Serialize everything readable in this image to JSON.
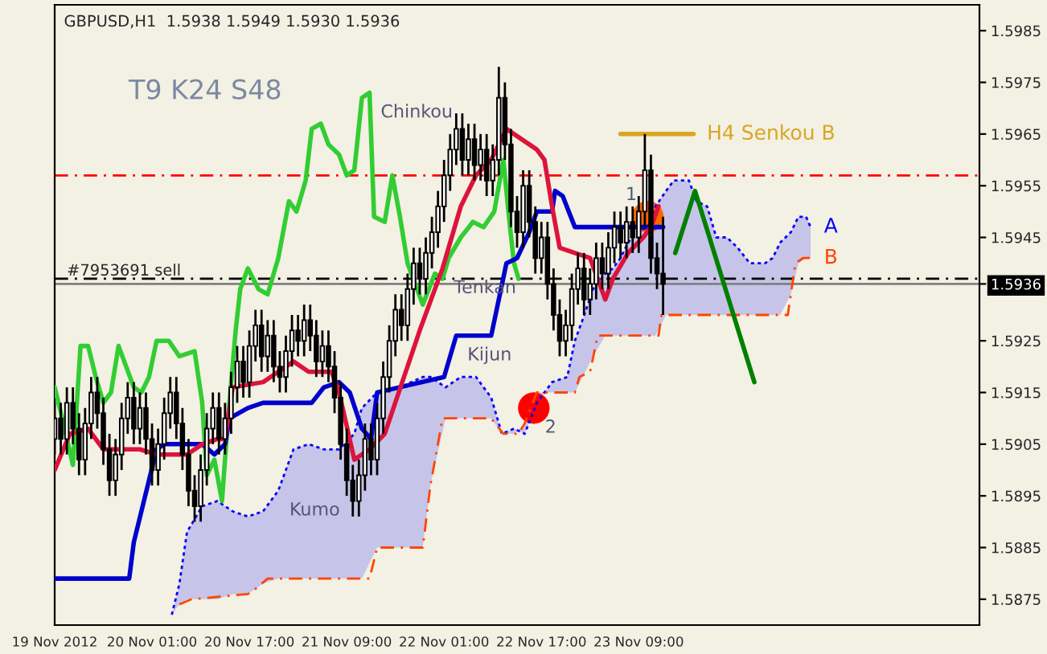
{
  "chart_data": {
    "type": "candlestick",
    "title": "GBPUSD,H1  1.5938 1.5949 1.5930 1.5936",
    "x": [
      "2012-11-19T09:00",
      "2012-11-19T10:00",
      "2012-11-19T11:00",
      "2012-11-19T12:00",
      "2012-11-19T13:00",
      "2012-11-19T14:00",
      "2012-11-19T15:00",
      "2012-11-19T16:00",
      "2012-11-19T17:00",
      "2012-11-19T18:00",
      "2012-11-19T19:00",
      "2012-11-19T20:00",
      "2012-11-19T21:00",
      "2012-11-19T22:00",
      "2012-11-19T23:00",
      "2012-11-20T00:00",
      "2012-11-20T01:00",
      "2012-11-20T02:00",
      "2012-11-20T03:00",
      "2012-11-20T04:00",
      "2012-11-20T05:00",
      "2012-11-20T06:00",
      "2012-11-20T07:00",
      "2012-11-20T08:00",
      "2012-11-20T09:00",
      "2012-11-20T10:00",
      "2012-11-20T11:00",
      "2012-11-20T12:00",
      "2012-11-20T13:00",
      "2012-11-20T14:00",
      "2012-11-20T15:00",
      "2012-11-20T16:00",
      "2012-11-20T17:00",
      "2012-11-20T18:00",
      "2012-11-20T19:00",
      "2012-11-20T20:00",
      "2012-11-20T21:00",
      "2012-11-20T22:00",
      "2012-11-20T23:00",
      "2012-11-21T00:00",
      "2012-11-21T01:00",
      "2012-11-21T02:00",
      "2012-11-21T03:00",
      "2012-11-21T04:00",
      "2012-11-21T05:00",
      "2012-11-21T06:00",
      "2012-11-21T07:00",
      "2012-11-21T08:00",
      "2012-11-21T09:00",
      "2012-11-21T10:00",
      "2012-11-21T11:00",
      "2012-11-21T12:00",
      "2012-11-21T13:00",
      "2012-11-21T14:00",
      "2012-11-21T15:00",
      "2012-11-21T16:00",
      "2012-11-21T17:00",
      "2012-11-21T18:00",
      "2012-11-21T19:00",
      "2012-11-21T20:00",
      "2012-11-21T21:00",
      "2012-11-21T22:00",
      "2012-11-21T23:00",
      "2012-11-22T00:00",
      "2012-11-22T01:00",
      "2012-11-22T02:00",
      "2012-11-22T03:00",
      "2012-11-22T04:00",
      "2012-11-22T05:00",
      "2012-11-22T06:00",
      "2012-11-22T07:00",
      "2012-11-22T08:00",
      "2012-11-22T09:00",
      "2012-11-22T10:00",
      "2012-11-22T11:00",
      "2012-11-22T12:00",
      "2012-11-22T13:00",
      "2012-11-22T14:00",
      "2012-11-22T15:00",
      "2012-11-22T16:00",
      "2012-11-22T17:00",
      "2012-11-22T18:00",
      "2012-11-22T19:00",
      "2012-11-22T20:00",
      "2012-11-22T21:00",
      "2012-11-22T22:00",
      "2012-11-22T23:00",
      "2012-11-23T00:00",
      "2012-11-23T01:00",
      "2012-11-23T02:00",
      "2012-11-23T03:00",
      "2012-11-23T04:00",
      "2012-11-23T05:00",
      "2012-11-23T06:00",
      "2012-11-23T07:00",
      "2012-11-23T08:00",
      "2012-11-23T09:00",
      "2012-11-23T10:00",
      "2012-11-23T11:00",
      "2012-11-23T12:00",
      "2012-11-23T13:00"
    ],
    "ohlc": [
      [
        1.5906,
        1.5913,
        1.5903,
        1.591
      ],
      [
        1.591,
        1.5913,
        1.5903,
        1.5906
      ],
      [
        1.5906,
        1.5916,
        1.5903,
        1.5913
      ],
      [
        1.5913,
        1.5916,
        1.5905,
        1.5908
      ],
      [
        1.5908,
        1.5911,
        1.5899,
        1.5902
      ],
      [
        1.5902,
        1.5912,
        1.5899,
        1.5909
      ],
      [
        1.5909,
        1.5918,
        1.5906,
        1.5915
      ],
      [
        1.5915,
        1.5918,
        1.5908,
        1.5911
      ],
      [
        1.5911,
        1.5914,
        1.5901,
        1.5904
      ],
      [
        1.5904,
        1.5907,
        1.5895,
        1.5898
      ],
      [
        1.5898,
        1.5906,
        1.5895,
        1.5903
      ],
      [
        1.5903,
        1.5913,
        1.59,
        1.591
      ],
      [
        1.591,
        1.5917,
        1.5907,
        1.5914
      ],
      [
        1.5914,
        1.5917,
        1.5905,
        1.5908
      ],
      [
        1.5908,
        1.5915,
        1.5905,
        1.5912
      ],
      [
        1.5912,
        1.5915,
        1.5903,
        1.5906
      ],
      [
        1.5906,
        1.5909,
        1.5897,
        1.59
      ],
      [
        1.59,
        1.5908,
        1.5897,
        1.5905
      ],
      [
        1.5905,
        1.5914,
        1.5902,
        1.5911
      ],
      [
        1.5911,
        1.5918,
        1.5908,
        1.5915
      ],
      [
        1.5915,
        1.5918,
        1.5906,
        1.5909
      ],
      [
        1.5909,
        1.5912,
        1.59,
        1.5903
      ],
      [
        1.5903,
        1.5906,
        1.5893,
        1.5896
      ],
      [
        1.5896,
        1.5899,
        1.589,
        1.5893
      ],
      [
        1.5893,
        1.5903,
        1.589,
        1.59
      ],
      [
        1.59,
        1.5911,
        1.5897,
        1.5908
      ],
      [
        1.5908,
        1.5915,
        1.5905,
        1.5912
      ],
      [
        1.5912,
        1.5915,
        1.5903,
        1.5906
      ],
      [
        1.5906,
        1.5913,
        1.5903,
        1.591
      ],
      [
        1.591,
        1.5919,
        1.5907,
        1.5916
      ],
      [
        1.5916,
        1.5924,
        1.5913,
        1.5921
      ],
      [
        1.5921,
        1.5924,
        1.5914,
        1.5917
      ],
      [
        1.5917,
        1.5927,
        1.5914,
        1.5924
      ],
      [
        1.5924,
        1.5931,
        1.5921,
        1.5928
      ],
      [
        1.5928,
        1.5931,
        1.5919,
        1.5922
      ],
      [
        1.5922,
        1.5929,
        1.5919,
        1.5926
      ],
      [
        1.5926,
        1.5929,
        1.5917,
        1.592
      ],
      [
        1.592,
        1.5923,
        1.5915,
        1.5918
      ],
      [
        1.5918,
        1.5926,
        1.5915,
        1.5923
      ],
      [
        1.5923,
        1.593,
        1.592,
        1.5927
      ],
      [
        1.5927,
        1.593,
        1.5922,
        1.5925
      ],
      [
        1.5925,
        1.5932,
        1.5922,
        1.5929
      ],
      [
        1.5929,
        1.5932,
        1.5923,
        1.5926
      ],
      [
        1.5926,
        1.5929,
        1.5918,
        1.5921
      ],
      [
        1.5921,
        1.5927,
        1.5918,
        1.5924
      ],
      [
        1.5924,
        1.5927,
        1.5917,
        1.592
      ],
      [
        1.592,
        1.5923,
        1.5911,
        1.5914
      ],
      [
        1.5914,
        1.5917,
        1.5902,
        1.5905
      ],
      [
        1.5905,
        1.5908,
        1.5895,
        1.5898
      ],
      [
        1.5898,
        1.5901,
        1.5891,
        1.5894
      ],
      [
        1.5894,
        1.5902,
        1.5891,
        1.5899
      ],
      [
        1.5899,
        1.5909,
        1.5896,
        1.5906
      ],
      [
        1.5906,
        1.5909,
        1.5899,
        1.5902
      ],
      [
        1.5902,
        1.5913,
        1.5899,
        1.591
      ],
      [
        1.591,
        1.5921,
        1.5907,
        1.5918
      ],
      [
        1.5918,
        1.5928,
        1.5915,
        1.5925
      ],
      [
        1.5925,
        1.5934,
        1.5922,
        1.5931
      ],
      [
        1.5931,
        1.5934,
        1.5925,
        1.5928
      ],
      [
        1.5928,
        1.5938,
        1.5925,
        1.5935
      ],
      [
        1.5935,
        1.5943,
        1.5932,
        1.594
      ],
      [
        1.594,
        1.5943,
        1.5934,
        1.5937
      ],
      [
        1.5937,
        1.5945,
        1.5934,
        1.5942
      ],
      [
        1.5942,
        1.5949,
        1.5939,
        1.5946
      ],
      [
        1.5946,
        1.5954,
        1.5943,
        1.5951
      ],
      [
        1.5951,
        1.596,
        1.5948,
        1.5957
      ],
      [
        1.5957,
        1.5965,
        1.5954,
        1.5962
      ],
      [
        1.5962,
        1.5969,
        1.5959,
        1.5966
      ],
      [
        1.5966,
        1.5969,
        1.5957,
        1.596
      ],
      [
        1.596,
        1.5967,
        1.5957,
        1.5964
      ],
      [
        1.5964,
        1.5967,
        1.5956,
        1.5959
      ],
      [
        1.5959,
        1.5965,
        1.5956,
        1.5962
      ],
      [
        1.5962,
        1.5965,
        1.5953,
        1.5956
      ],
      [
        1.5956,
        1.5963,
        1.5953,
        1.596
      ],
      [
        1.596,
        1.5978,
        1.5957,
        1.5972
      ],
      [
        1.5972,
        1.5975,
        1.596,
        1.5963
      ],
      [
        1.5963,
        1.5966,
        1.5947,
        1.595
      ],
      [
        1.595,
        1.5953,
        1.5943,
        1.5946
      ],
      [
        1.5946,
        1.5958,
        1.5943,
        1.5955
      ],
      [
        1.5955,
        1.5958,
        1.5945,
        1.5948
      ],
      [
        1.5948,
        1.5951,
        1.5938,
        1.5941
      ],
      [
        1.5941,
        1.5948,
        1.5938,
        1.5945
      ],
      [
        1.5945,
        1.5948,
        1.5933,
        1.5936
      ],
      [
        1.5936,
        1.5939,
        1.5927,
        1.593
      ],
      [
        1.593,
        1.5933,
        1.5922,
        1.5925
      ],
      [
        1.5925,
        1.5931,
        1.5922,
        1.5928
      ],
      [
        1.5928,
        1.5938,
        1.5925,
        1.5935
      ],
      [
        1.5935,
        1.5942,
        1.5932,
        1.5939
      ],
      [
        1.5939,
        1.5942,
        1.593,
        1.5933
      ],
      [
        1.5933,
        1.5939,
        1.593,
        1.5936
      ],
      [
        1.5936,
        1.5944,
        1.5933,
        1.5941
      ],
      [
        1.5941,
        1.5944,
        1.5935,
        1.5938
      ],
      [
        1.5938,
        1.5946,
        1.5935,
        1.5943
      ],
      [
        1.5943,
        1.595,
        1.594,
        1.5947
      ],
      [
        1.5947,
        1.595,
        1.5941,
        1.5944
      ],
      [
        1.5944,
        1.5951,
        1.5941,
        1.5948
      ],
      [
        1.5948,
        1.5951,
        1.5942,
        1.5945
      ],
      [
        1.5945,
        1.5953,
        1.5942,
        1.595
      ],
      [
        1.595,
        1.5965,
        1.5947,
        1.5958
      ],
      [
        1.5958,
        1.5961,
        1.5938,
        1.5941
      ],
      [
        1.5941,
        1.5944,
        1.5935,
        1.5938
      ],
      [
        1.5938,
        1.5949,
        1.593,
        1.5936
      ]
    ],
    "series": [
      {
        "type": "line",
        "name": "A",
        "color": "#0000ff",
        "line_style": "dotted",
        "x": [
          "2012-11-20T04:15",
          "2012-11-20T05:30",
          "2012-11-20T06:45",
          "2012-11-20T09:15",
          "2012-11-20T11:45",
          "2012-11-20T14:15",
          "2012-11-20T16:45",
          "2012-11-20T19:15",
          "2012-11-20T21:45",
          "2012-11-21T00:15",
          "2012-11-21T02:45",
          "2012-11-21T05:15",
          "2012-11-21T07:45",
          "2012-11-21T10:15",
          "2012-11-21T11:30",
          "2012-11-21T14:00",
          "2012-11-21T17:45",
          "2012-11-21T21:30",
          "2012-11-21T22:45",
          "2012-11-22T01:15",
          "2012-11-22T03:45",
          "2012-11-22T06:15",
          "2012-11-22T07:30",
          "2012-11-22T08:45",
          "2012-11-22T10:30",
          "2012-11-22T12:30",
          "2012-11-22T14:15",
          "2012-11-22T16:15",
          "2012-11-22T18:45",
          "2012-11-22T21:15",
          "2012-11-22T22:30",
          "2012-11-22T23:45",
          "2012-11-23T01:30",
          "2012-11-23T03:30",
          "2012-11-23T04:45",
          "2012-11-23T06:00",
          "2012-11-23T07:15",
          "2012-11-23T08:30",
          "2012-11-23T10:30",
          "2012-11-23T11:45",
          "2012-11-23T13:30",
          "2012-11-23T14:45",
          "2012-11-23T17:15",
          "2012-11-23T18:30",
          "2012-11-23T20:15",
          "2012-11-23T21:45",
          "2012-11-23T23:30",
          "2012-11-24T01:15",
          "2012-11-24T03:15",
          "2012-11-24T05:45",
          "2012-11-24T07:00",
          "2012-11-24T08:15",
          "2012-11-24T10:00",
          "2012-11-24T11:15",
          "2012-11-24T12:30",
          "2012-11-24T13:15"
        ],
        "values": [
          1.5872,
          1.5878,
          1.5888,
          1.5893,
          1.5894,
          1.5892,
          1.5891,
          1.5892,
          1.5896,
          1.5904,
          1.5905,
          1.5904,
          1.5904,
          1.5907,
          1.5912,
          1.5915,
          1.5916,
          1.5918,
          1.5918,
          1.5916,
          1.5918,
          1.5918,
          1.5916,
          1.5914,
          1.5907,
          1.5908,
          1.5907,
          1.5913,
          1.5917,
          1.5918,
          1.5925,
          1.5929,
          1.5935,
          1.5938,
          1.5939,
          1.5941,
          1.5944,
          1.5946,
          1.5947,
          1.5951,
          1.5954,
          1.5956,
          1.5956,
          1.5952,
          1.5951,
          1.5945,
          1.5945,
          1.5943,
          1.594,
          1.594,
          1.5941,
          1.5944,
          1.5946,
          1.5949,
          1.5949,
          1.5947
        ],
        "upper": [
          1.5872,
          1.5878,
          1.5888,
          1.5893,
          1.5894,
          1.5892,
          1.5891,
          1.5892,
          1.5896,
          1.5904,
          1.5905,
          1.5904,
          1.5904,
          1.5907,
          1.5912,
          1.5915,
          1.5916,
          1.5918,
          1.5918,
          1.5916,
          1.5918,
          1.5918,
          1.5916,
          1.5914,
          1.5907,
          1.5908,
          1.5907,
          1.5913,
          1.5917,
          1.5918,
          1.5925,
          1.5929,
          1.5935,
          1.5938,
          1.5939,
          1.5941,
          1.5944,
          1.5946,
          1.5947,
          1.5951,
          1.5954,
          1.5956,
          1.5956,
          1.5952,
          1.5951,
          1.5945,
          1.5945,
          1.5943,
          1.594,
          1.594,
          1.5941,
          1.5944,
          1.5946,
          1.5949,
          1.5949,
          1.5947
        ],
        "lower": [
          1.5872,
          1.5874,
          1.5875,
          1.5875,
          1.5875,
          1.5876,
          1.5876,
          1.5878,
          1.5879,
          1.5879,
          1.5879,
          1.5879,
          1.5879,
          1.5879,
          1.5879,
          1.5885,
          1.5885,
          1.5885,
          1.5897,
          1.591,
          1.591,
          1.591,
          1.591,
          1.591,
          1.5907,
          1.5907,
          1.5909,
          1.5915,
          1.5915,
          1.5915,
          1.5915,
          1.5918,
          1.5922,
          1.5926,
          1.5926,
          1.5926,
          1.5926,
          1.5926,
          1.5926,
          1.5926,
          1.593,
          1.593,
          1.593,
          1.593,
          1.593,
          1.593,
          1.593,
          1.593,
          1.593,
          1.593,
          1.593,
          1.593,
          1.5934,
          1.594,
          1.5941,
          1.5941
        ]
      },
      {
        "type": "line",
        "name": "B",
        "color": "#ff4500",
        "line_style": "dashed",
        "x": [
          "2012-11-20T05:30",
          "2012-11-20T07:30",
          "2012-11-20T16:45",
          "2012-11-20T18:00",
          "2012-11-20T20:00",
          "2012-11-21T12:45",
          "2012-11-21T14:00",
          "2012-11-21T21:30",
          "2012-11-21T22:45",
          "2012-11-22T00:45",
          "2012-11-22T08:45",
          "2012-11-22T10:45",
          "2012-11-22T13:15",
          "2012-11-22T14:15",
          "2012-11-22T16:15",
          "2012-11-22T22:30",
          "2012-11-22T23:15",
          "2012-11-23T01:00",
          "2012-11-23T02:15",
          "2012-11-23T12:15",
          "2012-11-23T12:45",
          "2012-11-24T09:30",
          "2012-11-24T10:45",
          "2012-11-24T12:00",
          "2012-11-24T13:15"
        ],
        "values": [
          1.5874,
          1.5875,
          1.5876,
          1.5877,
          1.5879,
          1.5879,
          1.5885,
          1.5885,
          1.5897,
          1.591,
          1.591,
          1.5907,
          1.5907,
          1.5909,
          1.5915,
          1.5915,
          1.5918,
          1.5919,
          1.5926,
          1.5926,
          1.593,
          1.593,
          1.594,
          1.5941,
          1.5941
        ]
      },
      {
        "type": "line",
        "color": "#32cd32",
        "line_style": "solid",
        "x": [
          "2012-11-19T09:00",
          "2012-11-19T10:15",
          "2012-11-19T12:00",
          "2012-11-19T13:15",
          "2012-11-19T14:30",
          "2012-11-19T15:45",
          "2012-11-19T17:00",
          "2012-11-19T18:15",
          "2012-11-19T19:30",
          "2012-11-19T22:00",
          "2012-11-19T23:15",
          "2012-11-20T00:30",
          "2012-11-20T01:45",
          "2012-11-20T03:45",
          "2012-11-20T05:30",
          "2012-11-20T08:00",
          "2012-11-20T09:15",
          "2012-11-20T10:00",
          "2012-11-20T11:15",
          "2012-11-20T12:30",
          "2012-11-20T13:30",
          "2012-11-20T14:45",
          "2012-11-20T15:30",
          "2012-11-20T16:45",
          "2012-11-20T18:30",
          "2012-11-20T20:00",
          "2012-11-20T21:45",
          "2012-11-20T23:30",
          "2012-11-21T00:45",
          "2012-11-21T02:15",
          "2012-11-21T03:15",
          "2012-11-21T04:45",
          "2012-11-21T06:00",
          "2012-11-21T07:45",
          "2012-11-21T09:00",
          "2012-11-21T10:15",
          "2012-11-21T11:30",
          "2012-11-21T12:45",
          "2012-11-21T13:30",
          "2012-11-21T15:15",
          "2012-11-21T16:30",
          "2012-11-21T17:45",
          "2012-11-21T19:00",
          "2012-11-21T21:30",
          "2012-11-21T23:30",
          "2012-11-22T00:45",
          "2012-11-22T01:45",
          "2012-11-22T03:45",
          "2012-11-22T05:45",
          "2012-11-22T07:30",
          "2012-11-22T09:15",
          "2012-11-22T10:45",
          "2012-11-22T11:45",
          "2012-11-22T12:30",
          "2012-11-22T13:15"
        ],
        "values": [
          1.5916,
          1.591,
          1.5901,
          1.5924,
          1.5924,
          1.5918,
          1.5913,
          1.5915,
          1.5924,
          1.5916,
          1.5915,
          1.5918,
          1.5925,
          1.5925,
          1.5922,
          1.5923,
          1.5913,
          1.5899,
          1.5902,
          1.5894,
          1.591,
          1.5927,
          1.5935,
          1.5939,
          1.5935,
          1.5934,
          1.5941,
          1.5952,
          1.595,
          1.5956,
          1.5966,
          1.5967,
          1.5963,
          1.5961,
          1.5957,
          1.5958,
          1.5972,
          1.5973,
          1.5949,
          1.5948,
          1.5957,
          1.5949,
          1.594,
          1.5932,
          1.5938,
          1.5937,
          1.5941,
          1.5945,
          1.5948,
          1.5947,
          1.595,
          1.596,
          1.5948,
          1.594,
          1.5937
        ]
      },
      {
        "type": "line",
        "color": "#0000cd",
        "line_style": "solid",
        "x": [
          "2012-11-19T09:00",
          "2012-11-19T21:15",
          "2012-11-19T22:00",
          "2012-11-20T01:45",
          "2012-11-20T03:00",
          "2012-11-20T09:15",
          "2012-11-20T11:15",
          "2012-11-20T13:00",
          "2012-11-20T13:45",
          "2012-11-20T16:45",
          "2012-11-20T19:15",
          "2012-11-21T03:15",
          "2012-11-21T05:15",
          "2012-11-21T07:45",
          "2012-11-21T09:30",
          "2012-11-21T11:30",
          "2012-11-21T13:00",
          "2012-11-21T14:00",
          "2012-11-22T01:00",
          "2012-11-22T03:00",
          "2012-11-22T08:45",
          "2012-11-22T11:15",
          "2012-11-22T13:00",
          "2012-11-22T15:00",
          "2012-11-22T16:15",
          "2012-11-22T18:45",
          "2012-11-22T19:15",
          "2012-11-22T20:30",
          "2012-11-22T22:30",
          "2012-11-23T13:00"
        ],
        "values": [
          1.5879,
          1.5879,
          1.5886,
          1.5904,
          1.5905,
          1.5905,
          1.5903,
          1.5905,
          1.591,
          1.5912,
          1.5913,
          1.5913,
          1.5916,
          1.5917,
          1.5915,
          1.5908,
          1.5906,
          1.5915,
          1.5918,
          1.5926,
          1.5926,
          1.594,
          1.5941,
          1.5946,
          1.595,
          1.595,
          1.5954,
          1.5953,
          1.5947,
          1.5947
        ]
      },
      {
        "type": "line",
        "color": "#dc143c",
        "line_style": "solid",
        "x": [
          "2012-11-19T09:00",
          "2012-11-19T11:30",
          "2012-11-19T14:30",
          "2012-11-19T17:00",
          "2012-11-19T19:30",
          "2012-11-19T23:00",
          "2012-11-20T01:45",
          "2012-11-20T04:15",
          "2012-11-20T06:45",
          "2012-11-20T09:15",
          "2012-11-20T11:45",
          "2012-11-20T13:00",
          "2012-11-20T14:15",
          "2012-11-20T19:15",
          "2012-11-20T21:45",
          "2012-11-21T00:15",
          "2012-11-21T02:45",
          "2012-11-21T06:30",
          "2012-11-21T07:45",
          "2012-11-21T10:15",
          "2012-11-21T12:45",
          "2012-11-21T15:15",
          "2012-11-21T21:00",
          "2012-11-22T00:45",
          "2012-11-22T03:45",
          "2012-11-22T06:15",
          "2012-11-22T08:45",
          "2012-11-22T11:15",
          "2012-11-22T12:30",
          "2012-11-22T16:15",
          "2012-11-22T17:30",
          "2012-11-22T18:45",
          "2012-11-22T20:00",
          "2012-11-22T22:30",
          "2012-11-23T01:00",
          "2012-11-23T02:15",
          "2012-11-23T03:30",
          "2012-11-23T04:45",
          "2012-11-23T07:15",
          "2012-11-23T09:45",
          "2012-11-23T11:00",
          "2012-11-23T12:15"
        ],
        "values": [
          1.59,
          1.5907,
          1.5908,
          1.5904,
          1.5904,
          1.5904,
          1.5903,
          1.5903,
          1.5903,
          1.5905,
          1.5906,
          1.5906,
          1.5916,
          1.5917,
          1.5919,
          1.5921,
          1.5919,
          1.5919,
          1.5915,
          1.5902,
          1.5904,
          1.5907,
          1.5927,
          1.5939,
          1.5951,
          1.5957,
          1.596,
          1.5966,
          1.5965,
          1.5962,
          1.596,
          1.5951,
          1.5943,
          1.5942,
          1.5941,
          1.5937,
          1.5933,
          1.5937,
          1.5942,
          1.5945,
          1.5947,
          1.5951
        ]
      },
      {
        "type": "line",
        "name": "H4 Senkou B",
        "color": "#daa520",
        "line_style": "solid",
        "x": [
          "2012-11-23T06:00",
          "2012-11-23T18:00"
        ],
        "values": [
          1.5965,
          1.5965
        ]
      },
      {
        "type": "line",
        "color": "#008000",
        "line_style": "solid",
        "x": [
          "2012-11-23T15:00",
          "2012-11-23T18:15",
          "2012-11-24T04:00"
        ],
        "values": [
          1.5942,
          1.5954,
          1.5917
        ]
      },
      {
        "type": "scatter",
        "color": "#ff0000",
        "marker": "circle",
        "x": [
          "2012-11-22T15:45"
        ],
        "values": [
          1.5912
        ]
      },
      {
        "type": "scatter",
        "color": "#ff6600",
        "marker": "circle",
        "x": [
          "2012-11-23T10:30"
        ],
        "values": [
          1.5949
        ]
      }
    ],
    "ref_lines": [
      {
        "axis": "y",
        "value": 1.5957,
        "color": "#ff0000",
        "line_style": "dashed"
      },
      {
        "axis": "y",
        "value": 1.5937,
        "label": "#7953691 sell",
        "color": "#000000",
        "line_style": "dashed"
      },
      {
        "axis": "y",
        "value": 1.5936,
        "color": "#808080",
        "line_style": "solid"
      }
    ],
    "annotations": [
      "T9 K24 S48",
      {
        "text": "Chinkou",
        "x": "2012-11-21T12:45",
        "y": 1.5973
      },
      {
        "text": "Tenkan",
        "x": "2012-11-22T00:45",
        "y": 1.5939
      },
      {
        "text": "Kijun",
        "x": "2012-11-22T03:00",
        "y": 1.5926
      },
      {
        "text": "Kumo",
        "x": "2012-11-20T21:45",
        "y": 1.5896
      },
      {
        "text": "1",
        "x": "2012-11-23T05:00",
        "y": 1.5957
      },
      {
        "text": "2",
        "x": "2012-11-22T15:45",
        "y": 1.5912
      }
    ],
    "xlim": [
      "2012-11-19T09:00",
      "2012-11-25T17:00"
    ],
    "xticks": [
      {
        "value": "2012-11-19T09:00",
        "label": "19 Nov 2012"
      },
      {
        "value": "2012-11-20T01:00",
        "label": "20 Nov 01:00"
      },
      {
        "value": "2012-11-20T17:00",
        "label": "20 Nov 17:00"
      },
      {
        "value": "2012-11-21T09:00",
        "label": "21 Nov 09:00"
      },
      {
        "value": "2012-11-22T01:00",
        "label": "22 Nov 01:00"
      },
      {
        "value": "2012-11-22T17:00",
        "label": "22 Nov 17:00"
      },
      {
        "value": "2012-11-23T09:00",
        "label": "23 Nov 09:00"
      }
    ],
    "ylim": [
      1.587,
      1.599
    ],
    "yticks": [
      1.5875,
      1.5885,
      1.5895,
      1.5905,
      1.5915,
      1.5925,
      1.5936,
      1.5945,
      1.5955,
      1.5965,
      1.5975,
      1.5985
    ],
    "grid": false,
    "legend": false
  }
}
